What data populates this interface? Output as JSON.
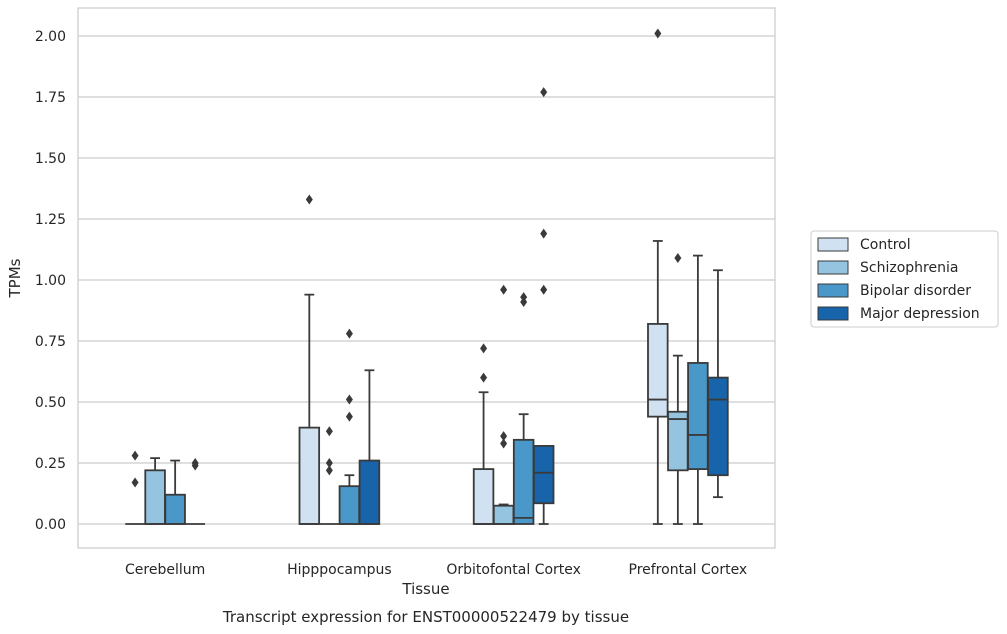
{
  "chart_data": {
    "type": "box",
    "caption": "Transcript expression for ENST00000522479 by tissue",
    "xlabel": "Tissue",
    "ylabel": "TPMs",
    "ylim": [
      -0.1,
      2.12
    ],
    "yticks": [
      "0.00",
      "0.25",
      "0.50",
      "0.75",
      "1.00",
      "1.25",
      "1.50",
      "1.75",
      "2.00"
    ],
    "grid": "horizontal",
    "legend_position": "right",
    "categories": [
      "Cerebellum",
      "Hipppocampus",
      "Orbitofontal Cortex",
      "Prefrontal Cortex"
    ],
    "series": [
      {
        "name": "Control",
        "color": "#d0e1f2",
        "boxes": [
          {
            "whislo": 0,
            "q1": 0,
            "med": 0,
            "q3": 0,
            "whishi": 0,
            "fliers": [
              0.28,
              0.17
            ]
          },
          {
            "whislo": 0,
            "q1": 0,
            "med": 0,
            "q3": 0.395,
            "whishi": 0.94,
            "fliers": [
              1.33
            ]
          },
          {
            "whislo": 0,
            "q1": 0,
            "med": 0,
            "q3": 0.225,
            "whishi": 0.54,
            "fliers": [
              0.6,
              0.72
            ]
          },
          {
            "whislo": 0,
            "q1": 0.44,
            "med": 0.51,
            "q3": 0.82,
            "whishi": 1.16,
            "fliers": [
              2.01
            ]
          }
        ]
      },
      {
        "name": "Schizophrenia",
        "color": "#94c4df",
        "boxes": [
          {
            "whislo": 0,
            "q1": 0,
            "med": 0,
            "q3": 0.22,
            "whishi": 0.27,
            "fliers": []
          },
          {
            "whislo": 0,
            "q1": 0,
            "med": 0,
            "q3": 0,
            "whishi": 0,
            "fliers": [
              0.38,
              0.25,
              0.22
            ]
          },
          {
            "whislo": 0,
            "q1": 0,
            "med": 0,
            "q3": 0.075,
            "whishi": 0.08,
            "fliers": [
              0.96,
              0.36,
              0.33
            ]
          },
          {
            "whislo": 0,
            "q1": 0.22,
            "med": 0.43,
            "q3": 0.46,
            "whishi": 0.69,
            "fliers": [
              1.09
            ]
          }
        ]
      },
      {
        "name": "Bipolar disorder",
        "color": "#4a98c9",
        "boxes": [
          {
            "whislo": 0,
            "q1": 0,
            "med": 0,
            "q3": 0.12,
            "whishi": 0.26,
            "fliers": []
          },
          {
            "whislo": 0,
            "q1": 0,
            "med": 0,
            "q3": 0.155,
            "whishi": 0.2,
            "fliers": [
              0.78,
              0.51,
              0.44
            ]
          },
          {
            "whislo": 0,
            "q1": 0,
            "med": 0.025,
            "q3": 0.345,
            "whishi": 0.45,
            "fliers": [
              0.93,
              0.91
            ]
          },
          {
            "whislo": 0,
            "q1": 0.225,
            "med": 0.365,
            "q3": 0.66,
            "whishi": 1.1,
            "fliers": []
          }
        ]
      },
      {
        "name": "Major depression",
        "color": "#1764ab",
        "boxes": [
          {
            "whislo": 0,
            "q1": 0,
            "med": 0,
            "q3": 0,
            "whishi": 0,
            "fliers": [
              0.25,
              0.24
            ]
          },
          {
            "whislo": 0,
            "q1": 0,
            "med": 0,
            "q3": 0.26,
            "whishi": 0.63,
            "fliers": []
          },
          {
            "whislo": 0,
            "q1": 0.085,
            "med": 0.21,
            "q3": 0.32,
            "whishi": 0.32,
            "fliers": [
              1.77,
              1.19,
              0.96
            ]
          },
          {
            "whislo": 0.11,
            "q1": 0.2,
            "med": 0.51,
            "q3": 0.6,
            "whishi": 1.04,
            "fliers": []
          }
        ]
      }
    ]
  }
}
